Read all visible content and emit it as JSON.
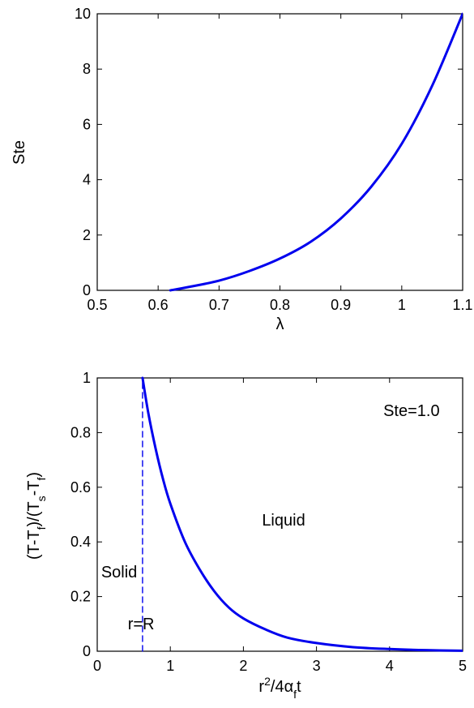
{
  "chart_data": [
    {
      "type": "line",
      "title": "",
      "xlabel": "λ",
      "ylabel": "Ste",
      "xlim": [
        0.5,
        1.1
      ],
      "ylim": [
        0,
        10
      ],
      "xticks": [
        "0.5",
        "0.6",
        "0.7",
        "0.8",
        "0.9",
        "1",
        "1.1"
      ],
      "yticks": [
        "0",
        "2",
        "4",
        "6",
        "8",
        "10"
      ],
      "grid": false,
      "series": [
        {
          "color": "#0000ee",
          "x": [
            0.62,
            0.65,
            0.7,
            0.75,
            0.8,
            0.85,
            0.9,
            0.95,
            1.0,
            1.05,
            1.1
          ],
          "y": [
            0.0,
            0.12,
            0.35,
            0.7,
            1.15,
            1.75,
            2.6,
            3.75,
            5.3,
            7.4,
            10.0
          ]
        }
      ]
    },
    {
      "type": "line",
      "title": "",
      "xlabel": "r²/4α_ft",
      "ylabel": "(T-T_f)/(T_s-T_f)",
      "xlim": [
        0,
        5
      ],
      "ylim": [
        0,
        1
      ],
      "xticks": [
        "0",
        "1",
        "2",
        "3",
        "4",
        "5"
      ],
      "yticks": [
        "0",
        "0.2",
        "0.4",
        "0.6",
        "0.8",
        "1"
      ],
      "grid": false,
      "series": [
        {
          "color": "#0000ee",
          "x": [
            0.62,
            0.7,
            0.8,
            0.9,
            1.0,
            1.2,
            1.4,
            1.6,
            1.8,
            2.0,
            2.3,
            2.6,
            3.0,
            3.5,
            4.0,
            4.5,
            5.0
          ],
          "y": [
            1.0,
            0.87,
            0.74,
            0.63,
            0.54,
            0.4,
            0.3,
            0.22,
            0.16,
            0.12,
            0.08,
            0.05,
            0.03,
            0.015,
            0.008,
            0.004,
            0.002
          ]
        },
        {
          "style": "dashed",
          "color": "#0000ee",
          "x": [
            0.62,
            0.62
          ],
          "y": [
            0,
            1
          ]
        }
      ],
      "annotations": [
        {
          "text": "Ste=1.0",
          "x": 4.3,
          "y": 0.86
        },
        {
          "text": "Liquid",
          "x": 2.55,
          "y": 0.46
        },
        {
          "text": "Solid",
          "x": 0.3,
          "y": 0.27
        },
        {
          "text": "r=R",
          "x": 0.6,
          "y": 0.08
        }
      ]
    }
  ]
}
